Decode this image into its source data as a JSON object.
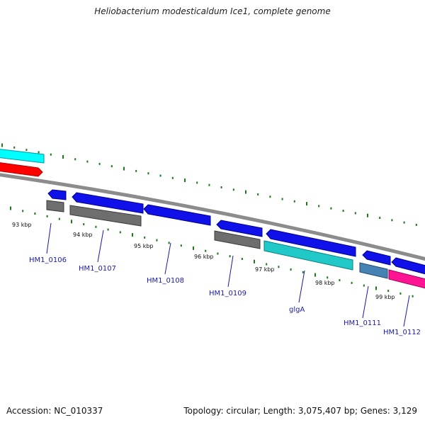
{
  "title": "Heliobacterium modesticaldum Ice1, complete genome",
  "footer": {
    "accession": "Accession: NC_010337",
    "summary": "Topology: circular; Length: 3,075,407 bp; Genes: 3,129"
  },
  "ruler": {
    "ticks": [
      "93 kbp",
      "94 kbp",
      "95 kbp",
      "96 kbp",
      "97 kbp",
      "98 kbp",
      "99 kbp"
    ]
  },
  "gene_labels": [
    "HM1_0106",
    "HM1_0107",
    "HM1_0108",
    "HM1_0109",
    "glgA",
    "HM1_0111",
    "HM1_0112"
  ],
  "colors": {
    "cds_forward": "#1010e8",
    "gene_gray": "#6e6e6e",
    "teal": "#20c8c8",
    "steel": "#4682b4",
    "magenta": "#ff1493",
    "red": "#ff0000",
    "cyan": "#00ffff",
    "backbone": "#8c8c8c",
    "tick": "#1a7a1a",
    "label": "#1a1aa8"
  }
}
